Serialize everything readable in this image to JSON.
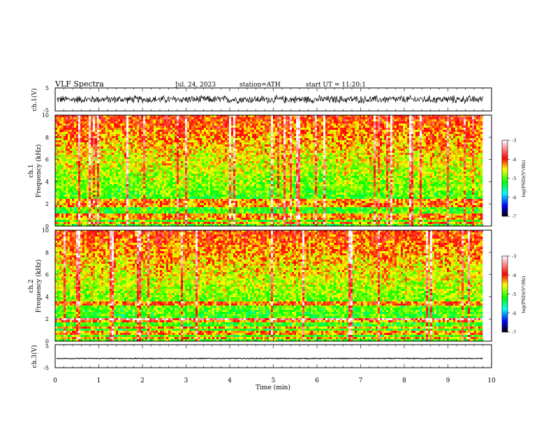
{
  "header": {
    "title": "VLF Spectra",
    "date": "Jul. 24, 2023",
    "station": "station=ATH",
    "start": "start UT = 11:20:1"
  },
  "colors": {
    "scale": [
      "#000000",
      "#0000ff",
      "#00ffff",
      "#00ff00",
      "#ffff00",
      "#ff0000",
      "#ffffff"
    ],
    "trace": "#000000",
    "axis": "#000000"
  },
  "chart_data": [
    {
      "type": "line",
      "ylabel": "ch.1(V)",
      "ylim": [
        -5,
        5
      ],
      "yticks": [
        "5",
        "-5"
      ],
      "xlim": [
        0,
        10
      ],
      "description_of_values": "dense waveform oscillating roughly between -1.5 and +1.5 V"
    },
    {
      "type": "heatmap",
      "ylabel_line1": "ch.1",
      "ylabel_line2": "Frequency (kHz)",
      "ylim": [
        0,
        10
      ],
      "yticks": [
        "0",
        "2",
        "4",
        "6",
        "8",
        "10"
      ],
      "xlim": [
        0,
        10
      ],
      "data_end_min": 9.8,
      "colorbar": {
        "label": "log(PSD)(V²/Hz)",
        "range": [
          -7,
          -3
        ],
        "ticks": [
          "-3",
          "-4",
          "-5",
          "-6",
          "-7"
        ]
      },
      "bands_khz": [
        0.3,
        0.6,
        0.8,
        1.1,
        1.9,
        2.2,
        2.4
      ]
    },
    {
      "type": "heatmap",
      "ylabel_line1": "ch.2",
      "ylabel_line2": "Frequency (kHz)",
      "ylim": [
        0,
        10
      ],
      "yticks": [
        "0",
        "2",
        "4",
        "6",
        "8",
        "10"
      ],
      "xlim": [
        0,
        10
      ],
      "data_end_min": 9.8,
      "colorbar": {
        "label": "log(PSD)(V²/Hz)",
        "range": [
          -7,
          -3
        ],
        "ticks": [
          "-3",
          "-4",
          "-5",
          "-6",
          "-7"
        ]
      },
      "bands_khz": [
        0.3,
        0.6,
        0.9,
        1.2,
        1.9,
        2.0,
        3.4
      ]
    },
    {
      "type": "line",
      "ylabel": "ch.3(V)",
      "ylim": [
        -5,
        5
      ],
      "yticks": [
        "5",
        "-5"
      ],
      "xlim": [
        0,
        10
      ],
      "description_of_values": "nearly flat trace near -1 V"
    }
  ],
  "xaxis": {
    "label": "Time (min)",
    "ticks": [
      "0",
      "1",
      "2",
      "3",
      "4",
      "5",
      "6",
      "7",
      "8",
      "9",
      "10"
    ]
  }
}
